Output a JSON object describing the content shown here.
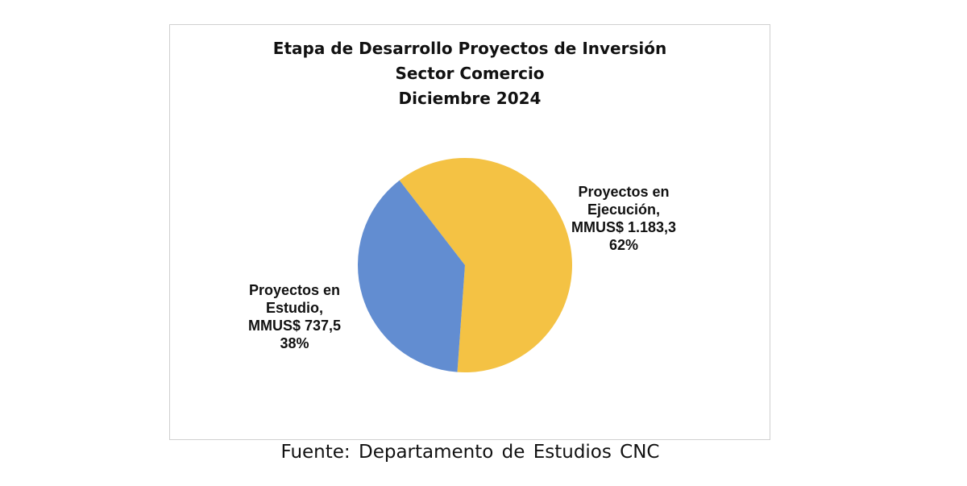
{
  "chart_data": {
    "type": "pie",
    "title_lines": [
      "Etapa de Desarrollo Proyectos de Inversión",
      "Sector Comercio",
      "Diciembre 2024"
    ],
    "slices": [
      {
        "label_lines": [
          "Proyectos en",
          "Ejecución,",
          "MMUS$ 1.183,3",
          "62%"
        ],
        "value": 1183.3,
        "percent": 62,
        "color": "#F4C244"
      },
      {
        "label_lines": [
          "Proyectos en",
          "Estudio,",
          "MMUS$ 737,5",
          "38%"
        ],
        "value": 737.5,
        "percent": 38,
        "color": "#628DD1"
      }
    ]
  },
  "source_text": "Fuente:  Departamento  de Estudios  CNC"
}
